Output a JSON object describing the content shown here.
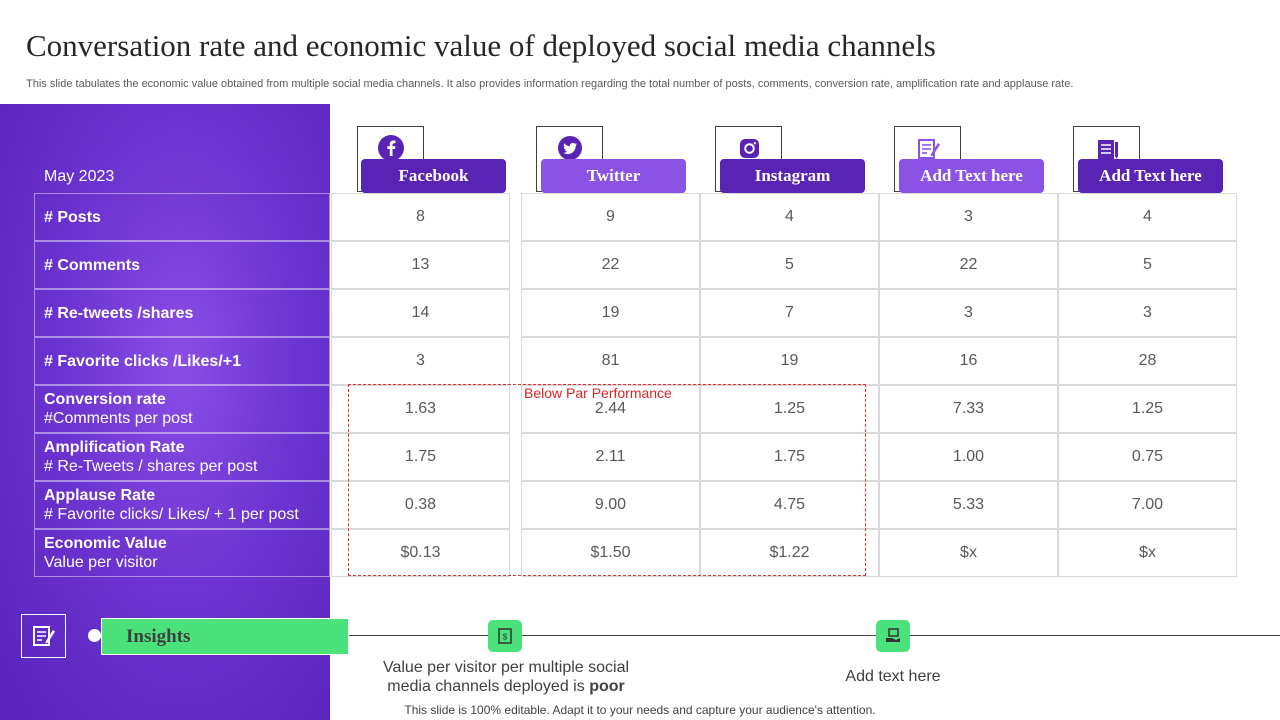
{
  "title": "Conversation rate and economic value of deployed social media channels",
  "subtitle": "This slide tabulates the economic value obtained from multiple social media channels. It also provides information regarding the total number of posts, comments, conversion rate, amplification rate and applause rate.",
  "date_label": "May 2023",
  "channels": [
    {
      "label": "Facebook",
      "icon": "facebook-icon",
      "style": "dark"
    },
    {
      "label": "Twitter",
      "icon": "twitter-icon",
      "style": "light"
    },
    {
      "label": "Instagram",
      "icon": "instagram-icon",
      "style": "dark"
    },
    {
      "label": "Add Text here",
      "icon": "notepad-icon",
      "style": "light"
    },
    {
      "label": "Add Text here",
      "icon": "document-icon",
      "style": "dark"
    }
  ],
  "rows": [
    {
      "label": "# Posts",
      "sub": "",
      "values": [
        "8",
        "9",
        "4",
        "3",
        "4"
      ]
    },
    {
      "label": "# Comments",
      "sub": "",
      "values": [
        "13",
        "22",
        "5",
        "22",
        "5"
      ]
    },
    {
      "label": "# Re-tweets /shares",
      "sub": "",
      "values": [
        "14",
        "19",
        "7",
        "3",
        "3"
      ]
    },
    {
      "label": "# Favorite clicks /Likes/+1",
      "sub": "",
      "values": [
        "3",
        "81",
        "19",
        "16",
        "28"
      ]
    },
    {
      "label": "Conversion rate",
      "sub": "#Comments per post",
      "values": [
        "1.63",
        "2.44",
        "1.25",
        "7.33",
        "1.25"
      ]
    },
    {
      "label": "Amplification  Rate",
      "sub": "# Re-Tweets  / shares per post",
      "values": [
        "1.75",
        "2.11",
        "1.75",
        "1.00",
        "0.75"
      ]
    },
    {
      "label": "Applause Rate",
      "sub": "# Favorite clicks/ Likes/ + 1 per post",
      "values": [
        "0.38",
        "9.00",
        "4.75",
        "5.33",
        "7.00"
      ]
    },
    {
      "label": "Economic Value",
      "sub": "Value per visitor",
      "values": [
        "$0.13",
        "$1.50",
        "$1.22",
        "$x",
        "$x"
      ]
    }
  ],
  "below_par_label": "Below Par Performance",
  "insights": {
    "title": "Insights",
    "point1_text": "Value per visitor per multiple  social media channels  deployed is",
    "point1_emphasis": "poor",
    "point2_text": "Add text here"
  },
  "footer": "This slide is 100% editable. Adapt it to your needs and capture your audience's attention.",
  "colors": {
    "purple_dark": "#5923b4",
    "purple_light": "#8a53e4",
    "green_accent": "#4be27b",
    "alert_red": "#d92626"
  }
}
